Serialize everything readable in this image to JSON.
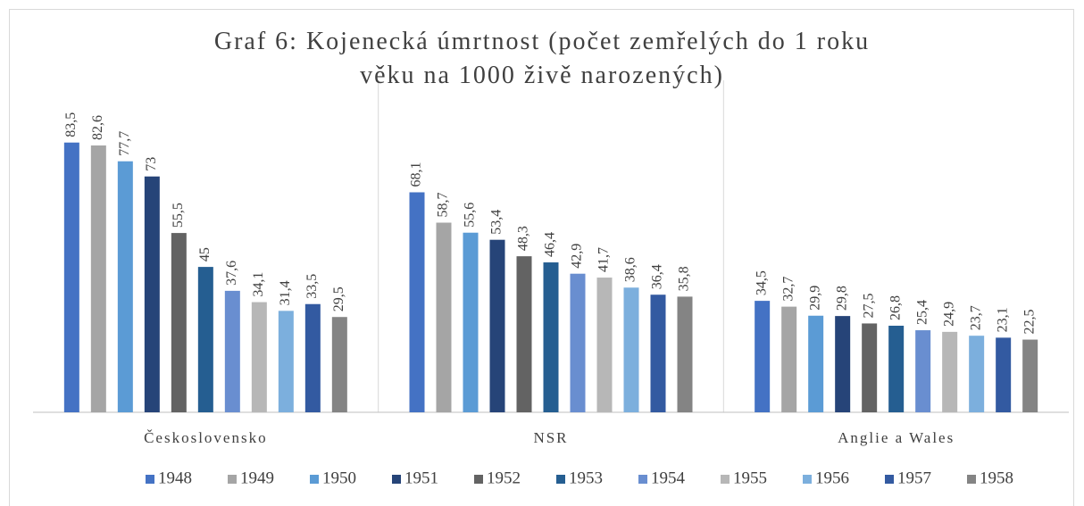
{
  "chart_data": {
    "type": "bar",
    "title": "Graf 6: Kojenecká úmrtnost (počet zemřelých do 1 roku věku na 1000 živě narozených)",
    "categories": [
      "Československo",
      "NSR",
      "Anglie a Wales"
    ],
    "series": [
      {
        "name": "1948",
        "color": "#4472c4",
        "values": [
          83.5,
          68.1,
          34.5
        ],
        "value_labels": [
          "83,5",
          "68,1",
          "34,5"
        ]
      },
      {
        "name": "1949",
        "color": "#a5a5a5",
        "values": [
          82.6,
          58.7,
          32.7
        ],
        "value_labels": [
          "82,6",
          "58,7",
          "32,7"
        ]
      },
      {
        "name": "1950",
        "color": "#5b9bd5",
        "values": [
          77.7,
          55.6,
          29.9
        ],
        "value_labels": [
          "77,7",
          "55,6",
          "29,9"
        ]
      },
      {
        "name": "1951",
        "color": "#264478",
        "values": [
          73,
          53.4,
          29.8
        ],
        "value_labels": [
          "73",
          "53,4",
          "29,8"
        ]
      },
      {
        "name": "1952",
        "color": "#636363",
        "values": [
          55.5,
          48.3,
          27.5
        ],
        "value_labels": [
          "55,5",
          "48,3",
          "27,5"
        ]
      },
      {
        "name": "1953",
        "color": "#255e91",
        "values": [
          45,
          46.4,
          26.8
        ],
        "value_labels": [
          "45",
          "46,4",
          "26,8"
        ]
      },
      {
        "name": "1954",
        "color": "#698ed0",
        "values": [
          37.6,
          42.9,
          25.4
        ],
        "value_labels": [
          "37,6",
          "42,9",
          "25,4"
        ]
      },
      {
        "name": "1955",
        "color": "#b7b7b7",
        "values": [
          34.1,
          41.7,
          24.9
        ],
        "value_labels": [
          "34,1",
          "41,7",
          "24,9"
        ]
      },
      {
        "name": "1956",
        "color": "#7cafdd",
        "values": [
          31.4,
          38.6,
          23.7
        ],
        "value_labels": [
          "31,4",
          "38,6",
          "23,7"
        ]
      },
      {
        "name": "1957",
        "color": "#335aa1",
        "values": [
          33.5,
          36.4,
          23.1
        ],
        "value_labels": [
          "33,5",
          "36,4",
          "23,1"
        ]
      },
      {
        "name": "1958",
        "color": "#848484",
        "values": [
          29.5,
          35.8,
          22.5
        ],
        "value_labels": [
          "29,5",
          "35,8",
          "22,5"
        ]
      }
    ],
    "legend": "bottom"
  }
}
